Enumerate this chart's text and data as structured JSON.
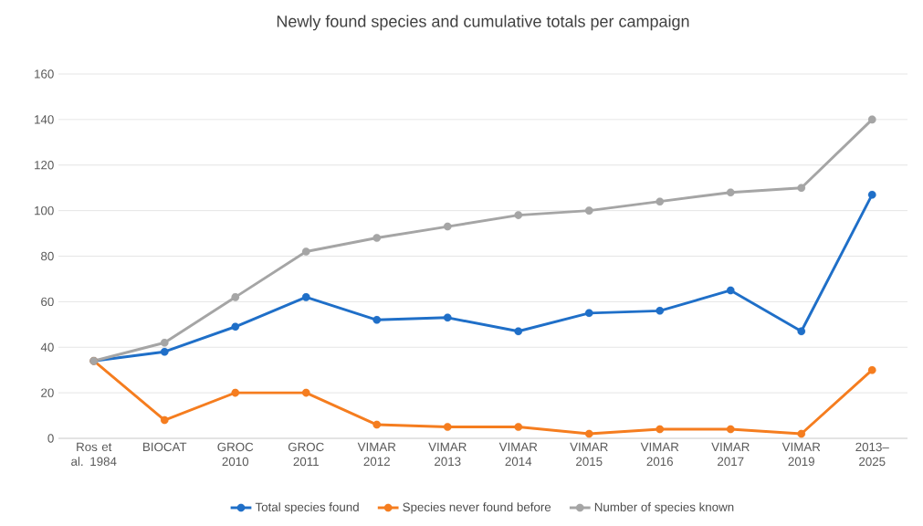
{
  "chart_data": {
    "type": "line",
    "title": "Newly found species and cumulative totals per campaign",
    "categories": [
      "Ros et al. 1984",
      "BIOCAT",
      "GROC 2010",
      "GROC 2011",
      "VIMAR 2012",
      "VIMAR 2013",
      "VIMAR 2014",
      "VIMAR 2015",
      "VIMAR 2016",
      "VIMAR 2017",
      "VIMAR 2019",
      "2013–2025"
    ],
    "series": [
      {
        "name": "Total species found",
        "color": "#1f6fc8",
        "values": [
          34,
          38,
          49,
          62,
          52,
          53,
          47,
          55,
          56,
          65,
          47,
          107
        ]
      },
      {
        "name": "Species never found before",
        "color": "#f57d1f",
        "values": [
          34,
          8,
          20,
          20,
          6,
          5,
          5,
          2,
          4,
          4,
          2,
          30
        ]
      },
      {
        "name": "Number of species known",
        "color": "#a5a5a5",
        "values": [
          34,
          42,
          62,
          82,
          88,
          93,
          98,
          100,
          104,
          108,
          110,
          140
        ]
      }
    ],
    "ylim": [
      0,
      160
    ],
    "yticks": [
      0,
      20,
      40,
      60,
      80,
      100,
      120,
      140,
      160
    ],
    "grid": "y",
    "legend": "bottom",
    "marker": "circle",
    "line_style": "solid"
  }
}
